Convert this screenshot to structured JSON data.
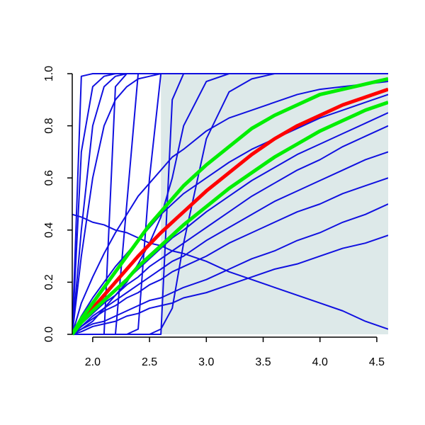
{
  "chart_data": {
    "type": "line",
    "x": [
      1.82,
      1.9,
      2.0,
      2.1,
      2.2,
      2.3,
      2.4,
      2.5,
      2.6,
      2.7,
      2.8,
      3.0,
      3.2,
      3.4,
      3.6,
      3.8,
      4.0,
      4.2,
      4.4,
      4.6
    ],
    "xlim": [
      1.82,
      4.6
    ],
    "ylim": [
      0,
      1
    ],
    "xticks": [
      {
        "value": 2,
        "label": "2.0"
      },
      2.5,
      {
        "value": 3,
        "label": "3.0"
      },
      3.5,
      {
        "value": 4,
        "label": "4.0"
      },
      4.5
    ],
    "yticks": [
      {
        "value": 0,
        "label": "0.0"
      },
      0.2,
      0.4,
      0.6,
      0.8,
      {
        "value": 1,
        "label": "1.0"
      }
    ],
    "shaded_region": {
      "xlim": [
        2.6,
        4.6
      ],
      "ylim": [
        0,
        1
      ],
      "color": "#dde9e9"
    },
    "series": [
      {
        "color": "#1010e0",
        "line_width": 2,
        "values": [
          0,
          0.99,
          1,
          1,
          1,
          1,
          1,
          1,
          1,
          1,
          1,
          1,
          1,
          1,
          1,
          1,
          1,
          1,
          1,
          1
        ]
      },
      {
        "color": "#1010e0",
        "line_width": 2,
        "values": [
          0,
          0.7,
          0.95,
          0.99,
          1,
          1,
          1,
          1,
          1,
          1,
          1,
          1,
          1,
          1,
          1,
          1,
          1,
          1,
          1,
          1
        ]
      },
      {
        "color": "#1010e0",
        "line_width": 2,
        "values": [
          0,
          0.4,
          0.8,
          0.95,
          0.99,
          1,
          1,
          1,
          1,
          1,
          1,
          1,
          1,
          1,
          1,
          1,
          1,
          1,
          1,
          1
        ]
      },
      {
        "color": "#1010e0",
        "line_width": 2,
        "values": [
          0,
          0.3,
          0.6,
          0.8,
          0.9,
          0.95,
          0.98,
          0.99,
          1,
          1,
          1,
          1,
          1,
          1,
          1,
          1,
          1,
          1,
          1,
          1
        ]
      },
      {
        "color": "#1010e0",
        "line_width": 2,
        "values": [
          0,
          0,
          0,
          0,
          0.95,
          1,
          1,
          1,
          1,
          1,
          1,
          1,
          1,
          1,
          1,
          1,
          1,
          1,
          1,
          1
        ]
      },
      {
        "color": "#1010e0",
        "line_width": 2,
        "values": [
          0,
          0,
          0,
          0,
          0,
          0.5,
          1,
          1,
          1,
          1,
          1,
          1,
          1,
          1,
          1,
          1,
          1,
          1,
          1,
          1
        ]
      },
      {
        "color": "#1010e0",
        "line_width": 2,
        "values": [
          0,
          0,
          0,
          0,
          0,
          0,
          0.02,
          0.6,
          1,
          1,
          1,
          1,
          1,
          1,
          1,
          1,
          1,
          1,
          1,
          1
        ]
      },
      {
        "color": "#1010e0",
        "line_width": 2,
        "values": [
          0,
          0,
          0,
          0,
          0,
          0,
          0,
          0,
          0,
          0.9,
          1,
          1,
          1,
          1,
          1,
          1,
          1,
          1,
          1,
          1
        ]
      },
      {
        "color": "#1010e0",
        "line_width": 2,
        "values": [
          0,
          0.02,
          0.05,
          0.1,
          0.15,
          0.2,
          0.27,
          0.35,
          0.45,
          0.6,
          0.8,
          0.97,
          1,
          1,
          1,
          1,
          1,
          1,
          1,
          1
        ]
      },
      {
        "color": "#1010e0",
        "line_width": 2,
        "values": [
          0,
          0,
          0,
          0,
          0,
          0,
          0,
          0,
          0.02,
          0.1,
          0.35,
          0.75,
          0.93,
          0.98,
          1,
          1,
          1,
          1,
          1,
          1
        ]
      },
      {
        "color": "#1010e0",
        "line_width": 2,
        "values": [
          0.46,
          0.45,
          0.43,
          0.42,
          0.4,
          0.39,
          0.37,
          0.35,
          0.34,
          0.32,
          0.31,
          0.28,
          0.24,
          0.21,
          0.18,
          0.15,
          0.12,
          0.09,
          0.05,
          0.02
        ]
      },
      {
        "color": "#1010e0",
        "line_width": 2,
        "values": [
          0,
          0.01,
          0.03,
          0.04,
          0.05,
          0.07,
          0.08,
          0.1,
          0.11,
          0.12,
          0.14,
          0.16,
          0.19,
          0.22,
          0.25,
          0.27,
          0.3,
          0.33,
          0.35,
          0.38
        ]
      },
      {
        "color": "#1010e0",
        "line_width": 2,
        "values": [
          0,
          0.02,
          0.04,
          0.05,
          0.07,
          0.09,
          0.11,
          0.13,
          0.14,
          0.16,
          0.18,
          0.21,
          0.25,
          0.29,
          0.32,
          0.36,
          0.39,
          0.43,
          0.46,
          0.5
        ]
      },
      {
        "color": "#1010e0",
        "line_width": 2,
        "values": [
          0,
          0.03,
          0.06,
          0.09,
          0.11,
          0.14,
          0.16,
          0.19,
          0.21,
          0.24,
          0.26,
          0.3,
          0.35,
          0.39,
          0.43,
          0.47,
          0.5,
          0.54,
          0.57,
          0.6
        ]
      },
      {
        "color": "#1010e0",
        "line_width": 2,
        "values": [
          0,
          0.03,
          0.07,
          0.1,
          0.13,
          0.16,
          0.19,
          0.22,
          0.25,
          0.28,
          0.3,
          0.36,
          0.41,
          0.46,
          0.51,
          0.55,
          0.59,
          0.63,
          0.67,
          0.7
        ]
      },
      {
        "color": "#1010e0",
        "line_width": 2,
        "values": [
          0,
          0.04,
          0.08,
          0.12,
          0.15,
          0.19,
          0.22,
          0.26,
          0.29,
          0.32,
          0.35,
          0.41,
          0.47,
          0.53,
          0.58,
          0.63,
          0.67,
          0.72,
          0.76,
          0.8
        ]
      },
      {
        "color": "#1010e0",
        "line_width": 2,
        "values": [
          0,
          0.04,
          0.09,
          0.13,
          0.17,
          0.21,
          0.25,
          0.29,
          0.33,
          0.37,
          0.4,
          0.47,
          0.53,
          0.59,
          0.64,
          0.69,
          0.73,
          0.77,
          0.81,
          0.85
        ]
      },
      {
        "color": "#1010e0",
        "line_width": 2,
        "values": [
          0,
          0.07,
          0.14,
          0.2,
          0.26,
          0.31,
          0.36,
          0.41,
          0.46,
          0.5,
          0.54,
          0.6,
          0.66,
          0.71,
          0.75,
          0.79,
          0.83,
          0.86,
          0.89,
          0.92
        ]
      },
      {
        "color": "#1010e0",
        "line_width": 2,
        "values": [
          0,
          0.12,
          0.22,
          0.31,
          0.39,
          0.46,
          0.53,
          0.58,
          0.63,
          0.68,
          0.71,
          0.78,
          0.83,
          0.86,
          0.89,
          0.92,
          0.94,
          0.95,
          0.96,
          0.97
        ]
      },
      {
        "color": "#ff0000",
        "line_width": 5,
        "values": [
          0,
          0.05,
          0.1,
          0.15,
          0.2,
          0.25,
          0.3,
          0.345,
          0.39,
          0.43,
          0.47,
          0.55,
          0.62,
          0.69,
          0.75,
          0.8,
          0.84,
          0.88,
          0.91,
          0.94
        ]
      },
      {
        "color": "#00ee00",
        "line_width": 5,
        "values": [
          0,
          0.06,
          0.12,
          0.18,
          0.24,
          0.3,
          0.36,
          0.42,
          0.47,
          0.52,
          0.57,
          0.65,
          0.72,
          0.79,
          0.84,
          0.88,
          0.92,
          0.94,
          0.96,
          0.98
        ]
      },
      {
        "color": "#00ee00",
        "line_width": 5,
        "values": [
          0,
          0.045,
          0.09,
          0.13,
          0.17,
          0.21,
          0.26,
          0.3,
          0.34,
          0.38,
          0.42,
          0.49,
          0.56,
          0.62,
          0.68,
          0.73,
          0.78,
          0.82,
          0.86,
          0.89
        ]
      }
    ]
  }
}
